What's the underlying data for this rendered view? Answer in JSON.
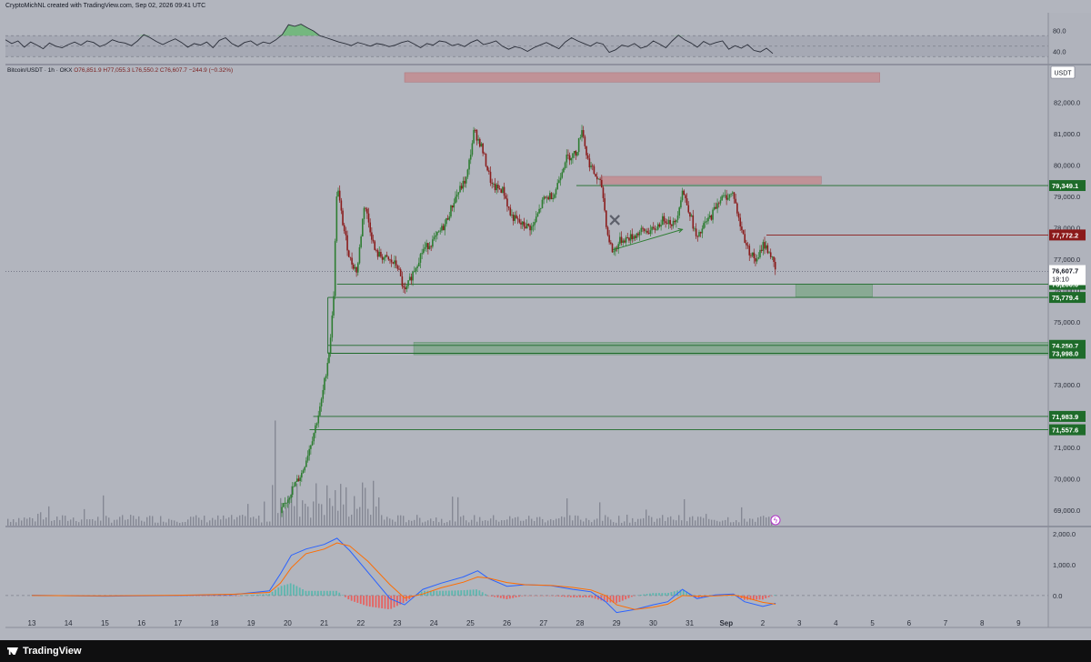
{
  "header": {
    "text": "CryptoMichNL created with TradingView.com, Sep 02, 2026 09:41 UTC"
  },
  "legend": {
    "symbol": "Bitcoin/USDT · 1h · OKX",
    "ohlc": "O76,851.9 H77,055.3 L76,550.2 C76,607.7 −244.9 (−0.32%)"
  },
  "footer": {
    "brand": "TradingView"
  },
  "chart_data": {
    "type": "candlestick",
    "currency_badge": "USDT",
    "x_ticks": [
      "13",
      "14",
      "15",
      "16",
      "17",
      "18",
      "19",
      "20",
      "21",
      "22",
      "23",
      "24",
      "25",
      "26",
      "27",
      "28",
      "29",
      "30",
      "31",
      "Sep",
      "2",
      "3",
      "4",
      "5",
      "6",
      "7",
      "8",
      "9"
    ],
    "price_axis": {
      "ylim": [
        68500,
        82600
      ],
      "ticks": [
        69000,
        70000,
        71000,
        72000,
        73000,
        74000,
        75000,
        76000,
        77000,
        78000,
        79000,
        80000,
        81000,
        82000
      ]
    },
    "price_path": [
      [
        19.8,
        68900
      ],
      [
        20.1,
        69600
      ],
      [
        20.4,
        70200
      ],
      [
        20.7,
        71400
      ],
      [
        20.9,
        72300
      ],
      [
        21.05,
        73400
      ],
      [
        21.15,
        74200
      ],
      [
        21.25,
        75600
      ],
      [
        21.35,
        79400
      ],
      [
        21.5,
        78200
      ],
      [
        21.7,
        77000
      ],
      [
        21.9,
        76600
      ],
      [
        22.1,
        78800
      ],
      [
        22.4,
        77200
      ],
      [
        22.7,
        77000
      ],
      [
        23.0,
        76800
      ],
      [
        23.2,
        75900
      ],
      [
        23.4,
        76500
      ],
      [
        23.7,
        77300
      ],
      [
        24.0,
        77600
      ],
      [
        24.3,
        78100
      ],
      [
        24.6,
        79000
      ],
      [
        24.9,
        79600
      ],
      [
        25.1,
        81100
      ],
      [
        25.3,
        80600
      ],
      [
        25.6,
        79300
      ],
      [
        25.9,
        79200
      ],
      [
        26.1,
        78400
      ],
      [
        26.4,
        78100
      ],
      [
        26.7,
        78000
      ],
      [
        27.0,
        78900
      ],
      [
        27.3,
        79100
      ],
      [
        27.6,
        80200
      ],
      [
        27.9,
        80400
      ],
      [
        28.05,
        81200
      ],
      [
        28.2,
        80200
      ],
      [
        28.4,
        79700
      ],
      [
        28.6,
        79300
      ],
      [
        28.75,
        77800
      ],
      [
        28.9,
        77200
      ],
      [
        29.1,
        77600
      ],
      [
        29.4,
        77700
      ],
      [
        29.7,
        77900
      ],
      [
        30.0,
        77900
      ],
      [
        30.3,
        78300
      ],
      [
        30.6,
        78100
      ],
      [
        30.8,
        79200
      ],
      [
        31.0,
        78500
      ],
      [
        31.2,
        77600
      ],
      [
        31.4,
        78100
      ],
      [
        31.6,
        78400
      ],
      [
        31.8,
        78900
      ],
      [
        32.0,
        79000
      ],
      [
        32.2,
        79100
      ],
      [
        32.35,
        78200
      ],
      [
        32.6,
        77300
      ],
      [
        32.85,
        76900
      ],
      [
        33.0,
        77500
      ],
      [
        33.2,
        77200
      ],
      [
        33.35,
        76600
      ]
    ],
    "current_price": {
      "label": "76,607.7",
      "countdown": "18:10",
      "value": 76607.7
    },
    "levels": [
      {
        "label": "79,349.1",
        "value": 79349.1,
        "x_from": 27.9
      },
      {
        "label": "77,772.2",
        "value": 77772.2,
        "x_from": 33.1,
        "color": "#8b1a1a"
      },
      {
        "label": "76,200.0",
        "value": 76200.0,
        "x_from": 21.35
      },
      {
        "label": "75,779.4",
        "value": 75779.4,
        "x_from": 21.1
      },
      {
        "label": "74,250.7",
        "value": 74250.7,
        "x_from": 21.1
      },
      {
        "label": "73,998.0",
        "value": 73998.0,
        "x_from": 21.1
      },
      {
        "label": "71,983.9",
        "value": 71983.9,
        "x_from": 20.7
      },
      {
        "label": "71,557.6",
        "value": 71557.6,
        "x_from": 20.6
      }
    ],
    "zones": [
      {
        "kind": "supply",
        "color": "#c48a8e",
        "x": [
          23.2,
          36.2
        ],
        "y": [
          82650,
          82950
        ]
      },
      {
        "kind": "supply",
        "color": "#c48a8e",
        "x": [
          28.6,
          34.6
        ],
        "y": [
          79400,
          79640
        ]
      },
      {
        "kind": "demand",
        "color": "#7fa88a",
        "x": [
          33.9,
          36.0
        ],
        "y": [
          75800,
          76200
        ]
      },
      {
        "kind": "demand",
        "color": "#7fa88a",
        "x": [
          23.45,
          42.0
        ],
        "y": [
          73950,
          74350
        ]
      }
    ],
    "annotations": [
      {
        "kind": "cross",
        "x": 28.95,
        "y": 78250
      },
      {
        "kind": "arrow",
        "from": [
          28.9,
          77300
        ],
        "to": [
          30.8,
          77950
        ]
      }
    ],
    "rsi": {
      "ticks": [
        40.0,
        80.0
      ],
      "band": [
        30,
        70
      ],
      "values": [
        62,
        55,
        60,
        48,
        58,
        52,
        45,
        56,
        50,
        47,
        53,
        58,
        52,
        60,
        57,
        49,
        54,
        62,
        58,
        56,
        51,
        60,
        72,
        66,
        59,
        53,
        59,
        64,
        57,
        48,
        55,
        52,
        58,
        47,
        61,
        66,
        55,
        49,
        57,
        60,
        52,
        58,
        55,
        62,
        72,
        91,
        88,
        92,
        85,
        79,
        70,
        66,
        62,
        58,
        55,
        51,
        57,
        54,
        50,
        55,
        53,
        49,
        52,
        57,
        60,
        54,
        47,
        55,
        52,
        60,
        58,
        51,
        54,
        49,
        57,
        62,
        53,
        56,
        60,
        50,
        44,
        49,
        46,
        40,
        47,
        52,
        57,
        51,
        45,
        58,
        66,
        60,
        55,
        50,
        57,
        54,
        38,
        43,
        52,
        49,
        55,
        46,
        50,
        60,
        54,
        47,
        60,
        71,
        62,
        56,
        48,
        59,
        53,
        57,
        60,
        44,
        51,
        46,
        53,
        42,
        39,
        46,
        36
      ]
    },
    "macd": {
      "ticks": [
        "2,000.0",
        "1,000.0",
        "0.0"
      ],
      "tick_values": [
        2000,
        1000,
        0
      ],
      "ylim": [
        -620,
        2200
      ],
      "macd_line": [
        [
          13,
          10
        ],
        [
          15,
          -20
        ],
        [
          17,
          0
        ],
        [
          18.5,
          30
        ],
        [
          19.5,
          150
        ],
        [
          19.8,
          700
        ],
        [
          20.1,
          1300
        ],
        [
          20.5,
          1500
        ],
        [
          21.0,
          1650
        ],
        [
          21.35,
          1850
        ],
        [
          21.7,
          1450
        ],
        [
          22.2,
          750
        ],
        [
          22.8,
          -100
        ],
        [
          23.2,
          -300
        ],
        [
          23.7,
          200
        ],
        [
          24.2,
          400
        ],
        [
          24.8,
          600
        ],
        [
          25.2,
          800
        ],
        [
          25.5,
          550
        ],
        [
          26.0,
          300
        ],
        [
          26.5,
          350
        ],
        [
          27.2,
          320
        ],
        [
          27.8,
          200
        ],
        [
          28.3,
          120
        ],
        [
          28.7,
          -200
        ],
        [
          29.0,
          -550
        ],
        [
          29.5,
          -450
        ],
        [
          30.0,
          -300
        ],
        [
          30.4,
          -200
        ],
        [
          30.8,
          200
        ],
        [
          31.2,
          -100
        ],
        [
          31.7,
          20
        ],
        [
          32.2,
          50
        ],
        [
          32.5,
          -200
        ],
        [
          33.0,
          -350
        ],
        [
          33.35,
          -250
        ]
      ],
      "signal_line": [
        [
          13,
          0
        ],
        [
          15,
          -10
        ],
        [
          17,
          10
        ],
        [
          18.5,
          40
        ],
        [
          19.5,
          100
        ],
        [
          19.8,
          400
        ],
        [
          20.1,
          900
        ],
        [
          20.5,
          1350
        ],
        [
          21.0,
          1500
        ],
        [
          21.35,
          1700
        ],
        [
          21.7,
          1600
        ],
        [
          22.2,
          1100
        ],
        [
          22.8,
          350
        ],
        [
          23.2,
          -80
        ],
        [
          23.7,
          50
        ],
        [
          24.2,
          250
        ],
        [
          24.8,
          430
        ],
        [
          25.2,
          600
        ],
        [
          25.5,
          560
        ],
        [
          26.0,
          420
        ],
        [
          26.5,
          350
        ],
        [
          27.2,
          330
        ],
        [
          27.8,
          260
        ],
        [
          28.3,
          180
        ],
        [
          28.7,
          0
        ],
        [
          29.0,
          -300
        ],
        [
          29.5,
          -450
        ],
        [
          30.0,
          -380
        ],
        [
          30.4,
          -280
        ],
        [
          30.8,
          0
        ],
        [
          31.2,
          -20
        ],
        [
          31.7,
          -10
        ],
        [
          32.2,
          20
        ],
        [
          32.5,
          -60
        ],
        [
          33.0,
          -220
        ],
        [
          33.35,
          -280
        ]
      ]
    }
  }
}
